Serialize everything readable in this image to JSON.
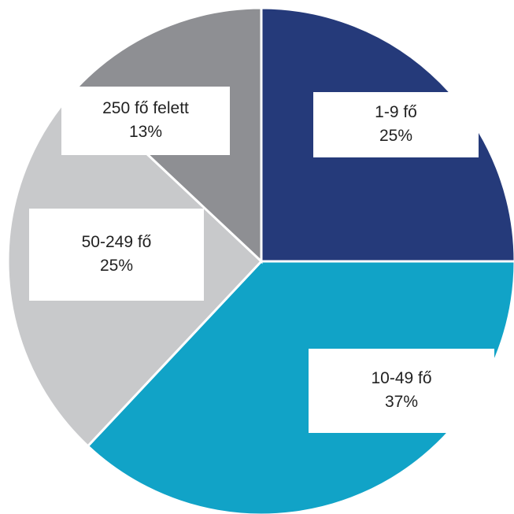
{
  "chart_data": {
    "type": "pie",
    "categories": [
      "1-9 fő",
      "10-49 fő",
      "50-249 fő",
      "250 fő felett"
    ],
    "values": [
      25,
      37,
      25,
      13
    ],
    "value_labels": [
      "25%",
      "37%",
      "25%",
      "13%"
    ],
    "colors": [
      "#253a7a",
      "#11a3c7",
      "#c8c9cb",
      "#8e8f93"
    ]
  }
}
